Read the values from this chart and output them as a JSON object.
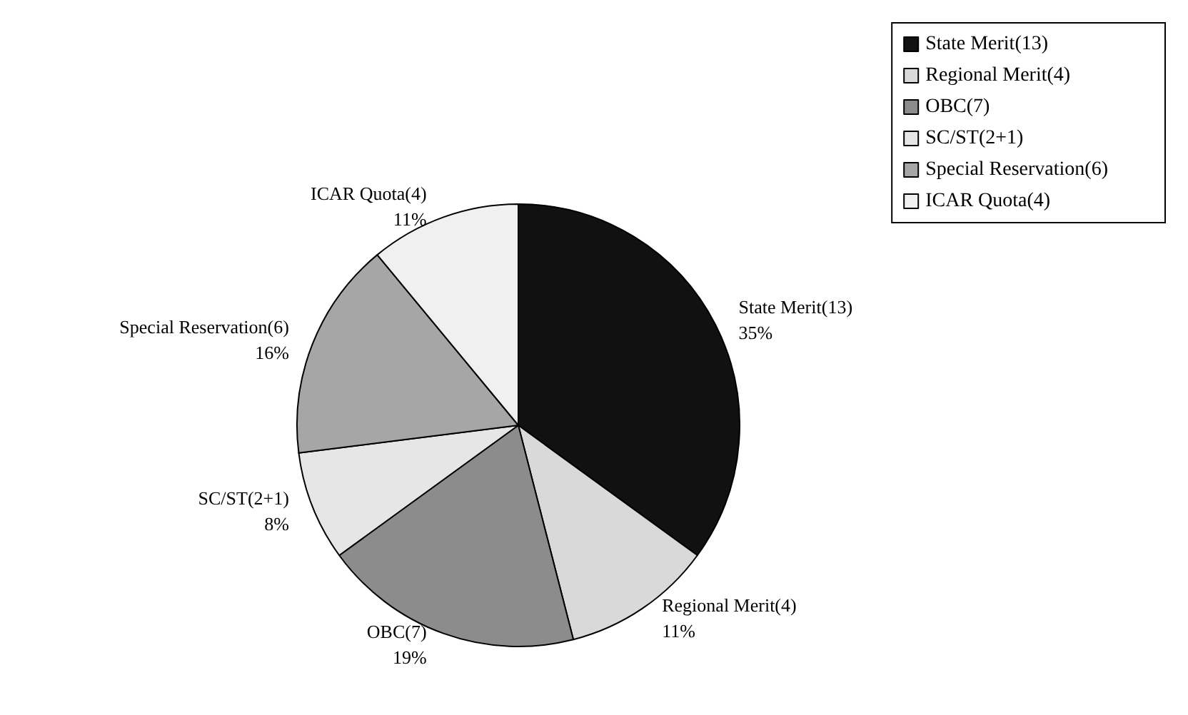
{
  "chart_data": {
    "type": "pie",
    "categories": [
      "State Merit(13)",
      "Regional Merit(4)",
      "OBC(7)",
      "SC/ST(2+1)",
      "Special Reservation(6)",
      "ICAR Quota(4)"
    ],
    "values": [
      35,
      11,
      19,
      8,
      16,
      11
    ],
    "colors": [
      "#111111",
      "#d9d9d9",
      "#8c8c8c",
      "#e6e6e6",
      "#a6a6a6",
      "#f0f0f0"
    ],
    "value_labels": [
      "35%",
      "11%",
      "19%",
      "8%",
      "16%",
      "11%"
    ],
    "legend": "top right"
  }
}
